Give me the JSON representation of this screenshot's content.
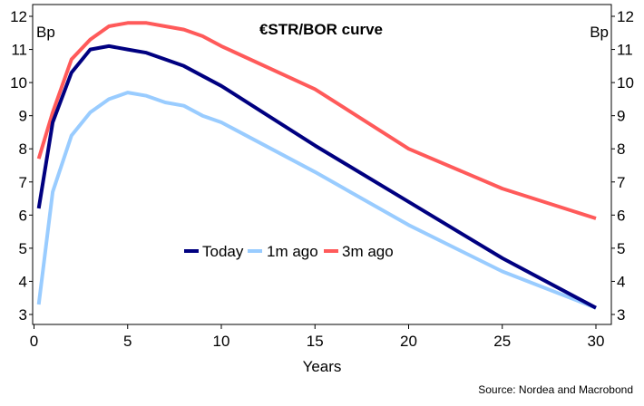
{
  "chart_data": {
    "type": "line",
    "title": "€STR/BOR curve",
    "xlabel": "Years",
    "ylabel_left": "Bp",
    "ylabel_right": "Bp",
    "source": "Source: Nordea and Macrobond",
    "xlim": [
      0,
      31
    ],
    "ylim": [
      2.8,
      12.3
    ],
    "xticks": [
      0,
      5,
      10,
      15,
      20,
      25,
      30
    ],
    "yticks": [
      3,
      4,
      5,
      6,
      7,
      8,
      9,
      10,
      11,
      12
    ],
    "grid": false,
    "legend_position": "center",
    "series": [
      {
        "name": "Today",
        "color": "#000080",
        "x": [
          0.25,
          1,
          2,
          3,
          4,
          5,
          6,
          7,
          8,
          9,
          10,
          15,
          20,
          25,
          30
        ],
        "y": [
          6.2,
          8.8,
          10.3,
          11.0,
          11.1,
          11.0,
          10.9,
          10.7,
          10.5,
          10.2,
          9.9,
          8.1,
          6.4,
          4.7,
          3.2
        ]
      },
      {
        "name": "1m ago",
        "color": "#99CCFF",
        "x": [
          0.25,
          1,
          2,
          3,
          4,
          5,
          6,
          7,
          8,
          9,
          10,
          15,
          20,
          25,
          30
        ],
        "y": [
          3.3,
          6.7,
          8.4,
          9.1,
          9.5,
          9.7,
          9.6,
          9.4,
          9.3,
          9.0,
          8.8,
          7.3,
          5.7,
          4.3,
          3.2
        ]
      },
      {
        "name": "3m ago",
        "color": "#FF5A5A",
        "x": [
          0.25,
          1,
          2,
          3,
          4,
          5,
          6,
          7,
          8,
          9,
          10,
          15,
          20,
          25,
          30
        ],
        "y": [
          7.7,
          9.1,
          10.7,
          11.3,
          11.7,
          11.8,
          11.8,
          11.7,
          11.6,
          11.4,
          11.1,
          9.8,
          8.0,
          6.8,
          5.9
        ]
      }
    ]
  }
}
